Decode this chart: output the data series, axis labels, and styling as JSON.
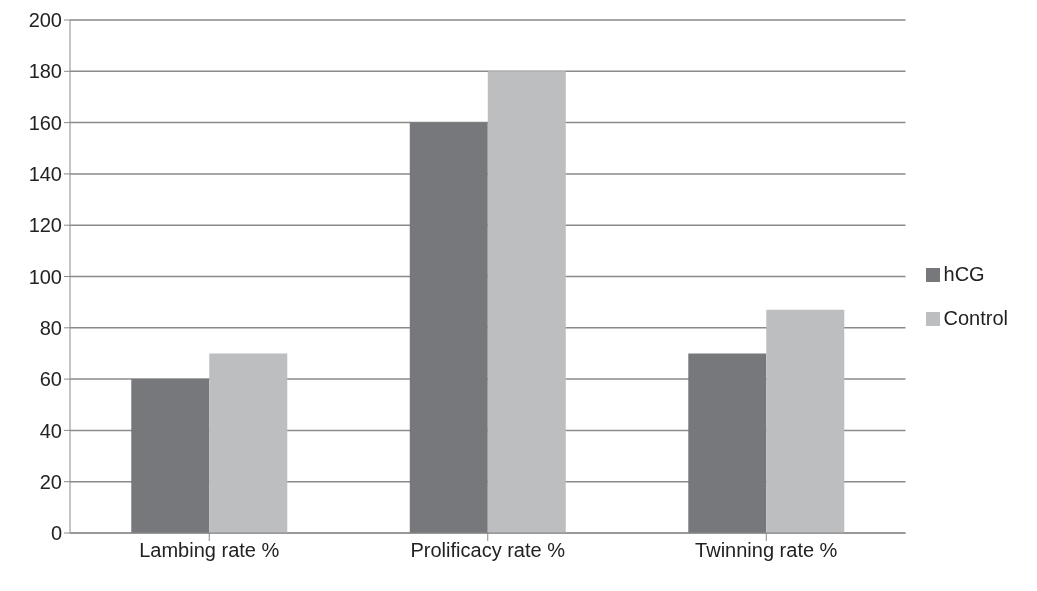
{
  "chart_data": {
    "type": "bar",
    "categories": [
      "Lambing rate %",
      "Prolificacy rate %",
      "Twinning rate %"
    ],
    "series": [
      {
        "name": "hCG",
        "color": "#77787b",
        "values": [
          60,
          160,
          70
        ]
      },
      {
        "name": "Control",
        "color": "#bcbec0",
        "values": [
          70,
          180,
          87
        ]
      }
    ],
    "ylim": [
      0,
      200
    ],
    "yticks": [
      0,
      20,
      40,
      60,
      80,
      100,
      120,
      140,
      160,
      180,
      200
    ],
    "grid": "y",
    "legend": "right"
  }
}
